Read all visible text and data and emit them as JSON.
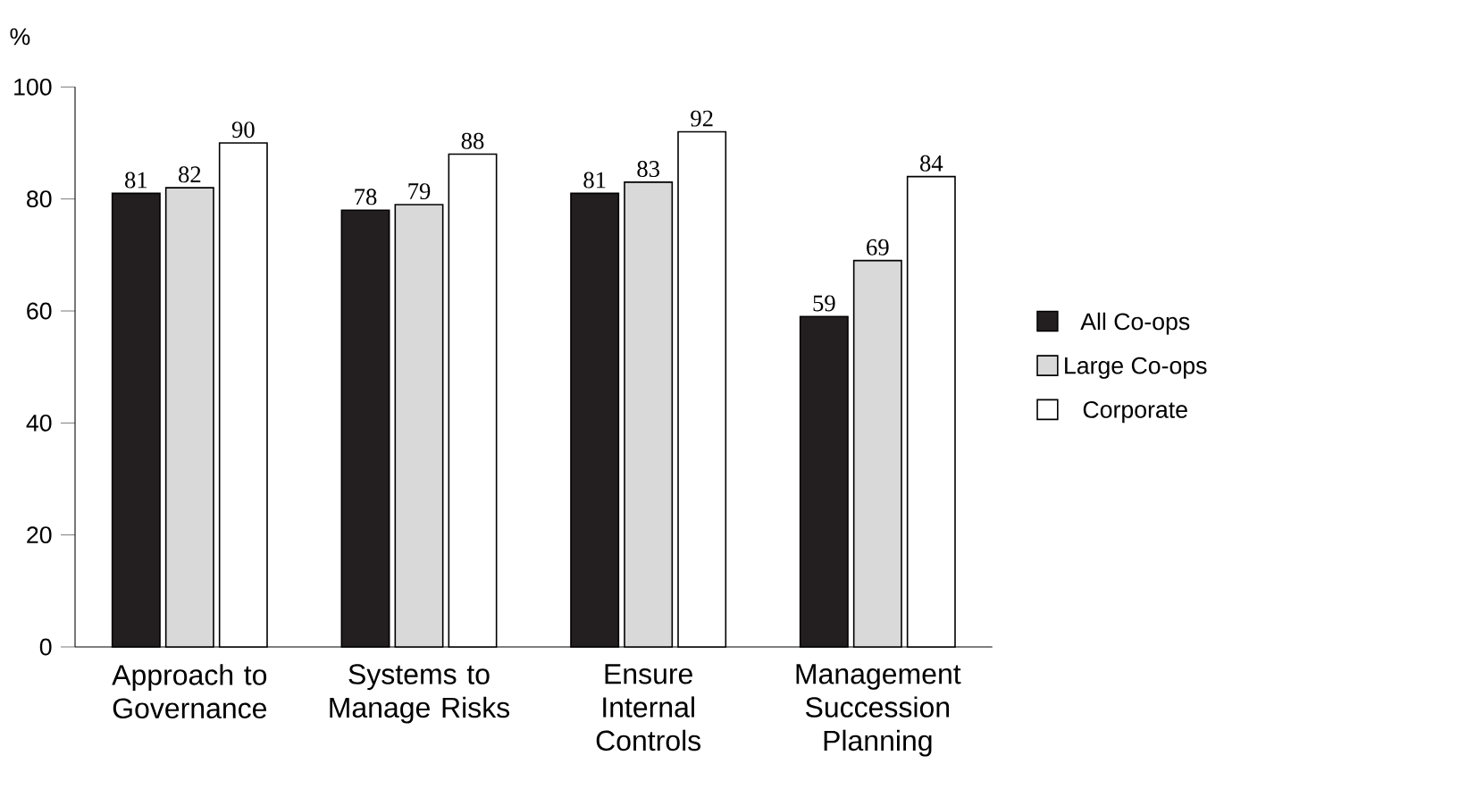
{
  "chart_data": {
    "type": "bar",
    "ylabel": "%",
    "categories": [
      "Approach to Governance",
      "Systems to Manage Risks",
      "Ensure Internal Controls",
      "Management Succession Planning"
    ],
    "series": [
      {
        "name": "All Co-ops",
        "color": "#231f20",
        "values": [
          81,
          78,
          81,
          59
        ]
      },
      {
        "name": "Large Co-ops",
        "color": "#d9d9d9",
        "values": [
          82,
          79,
          83,
          69
        ]
      },
      {
        "name": "Corporate",
        "color": "#ffffff",
        "values": [
          90,
          88,
          92,
          84
        ]
      }
    ],
    "ylim": [
      0,
      100
    ],
    "yticks": [
      0,
      20,
      40,
      60,
      80,
      100
    ],
    "data_labels": true,
    "legend": "right"
  }
}
